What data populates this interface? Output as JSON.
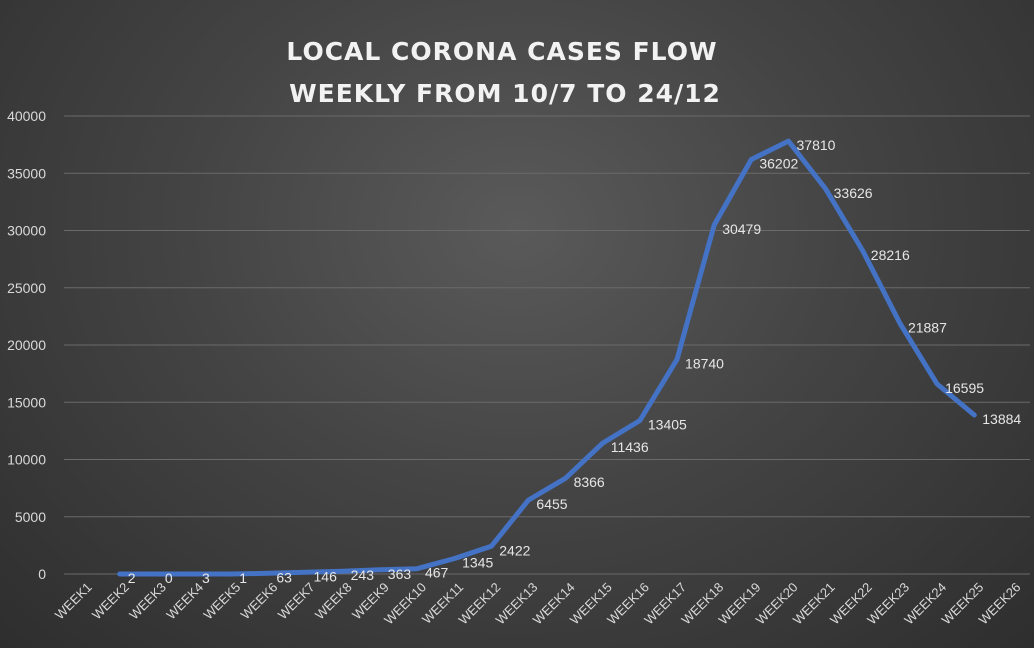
{
  "chart_data": {
    "type": "line",
    "title_lines": [
      "LOCAL CORONA CASES FLOW",
      "WEEKLY FROM 10/7  TO 24/12"
    ],
    "categories": [
      "WEEK1",
      "WEEK2",
      "WEEK3",
      "WEEK4",
      "WEEK5",
      "WEEK6",
      "WEEK7",
      "WEEK8",
      "WEEK9",
      "WEEK10",
      "WEEK11",
      "WEEK12",
      "WEEK13",
      "WEEK14",
      "WEEK15",
      "WEEK16",
      "WEEK17",
      "WEEK18",
      "WEEK19",
      "WEEK20",
      "WEEK21",
      "WEEK22",
      "WEEK23",
      "WEEK24",
      "WEEK25",
      "WEEK26"
    ],
    "values": [
      null,
      2,
      0,
      3,
      1,
      63,
      146,
      243,
      363,
      467,
      1345,
      2422,
      6455,
      8366,
      11436,
      13405,
      18740,
      30479,
      36202,
      37810,
      33626,
      28216,
      21887,
      16595,
      13884,
      null
    ],
    "ylim": [
      0,
      40000
    ],
    "yticks": [
      0,
      5000,
      10000,
      15000,
      20000,
      25000,
      30000,
      35000,
      40000
    ],
    "grid": true,
    "legend": "none",
    "line_color": "#4472c4"
  }
}
